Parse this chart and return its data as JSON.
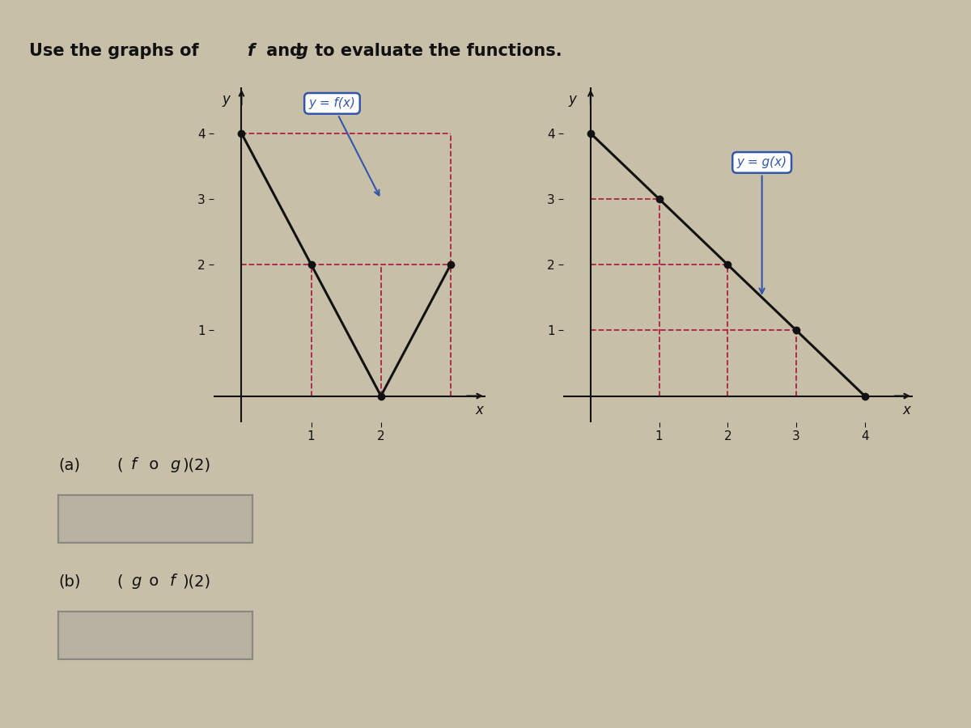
{
  "background_color": "#c8bfa8",
  "panel_bg": "#c8bfa8",
  "f_points": [
    [
      0,
      4
    ],
    [
      1,
      2
    ],
    [
      2,
      0
    ],
    [
      3,
      2
    ]
  ],
  "f_color": "#111111",
  "f_label": "y = f(x)",
  "f_label_color": "#3355aa",
  "g_points": [
    [
      0,
      4
    ],
    [
      1,
      3
    ],
    [
      2,
      2
    ],
    [
      3,
      1
    ],
    [
      4,
      0
    ]
  ],
  "g_color": "#111111",
  "g_label": "y = g(x)",
  "g_label_color": "#3355aa",
  "dashed_color": "#aa2244",
  "dot_color": "#111111",
  "dot_size": 6,
  "axis_color": "#111111",
  "text_color": "#111111",
  "box_bg": "#b8b0a0",
  "box_edge": "#888880",
  "title_main": "Use the graphs of ",
  "title_f": "f",
  "title_and": " and ",
  "title_g": "g",
  "title_end": " to evaluate the functions.",
  "part_a": "(a)",
  "fog_label": "(f o g)(2)",
  "part_b": "(b)",
  "gof_label": "(g o f)(2)",
  "f_xlim": [
    -0.4,
    3.5
  ],
  "f_ylim": [
    -0.4,
    4.7
  ],
  "g_xlim": [
    -0.4,
    4.7
  ],
  "g_ylim": [
    -0.4,
    4.7
  ],
  "f_xticks": [
    1,
    2
  ],
  "f_yticks": [
    1,
    2,
    3,
    4
  ],
  "g_xticks": [
    1,
    2,
    3,
    4
  ],
  "g_yticks": [
    1,
    2,
    3,
    4
  ],
  "f_dashed_points": [
    [
      1,
      2
    ],
    [
      2,
      0
    ],
    [
      3,
      2
    ]
  ],
  "g_dashed_points": [
    [
      1,
      3
    ],
    [
      2,
      2
    ],
    [
      3,
      1
    ]
  ]
}
